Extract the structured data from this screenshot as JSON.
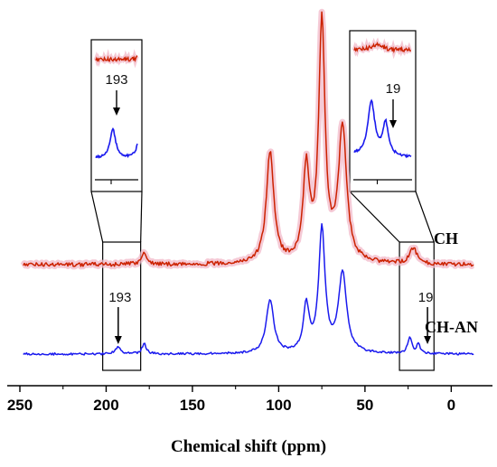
{
  "chart_data": {
    "type": "line",
    "title": "",
    "xlabel": "Chemical shift (ppm)",
    "ylabel": "",
    "xlim": [
      250,
      -15
    ],
    "x_reversed": true,
    "x_ticks": [
      250,
      200,
      150,
      100,
      50,
      0
    ],
    "x_tick_labels": [
      "250",
      "200",
      "150",
      "100",
      "50",
      "0"
    ],
    "grid": false,
    "series": [
      {
        "name": "CH",
        "color": "#cc2200",
        "glow_color": "#f2b8c8",
        "baseline": 0,
        "peaks": [
          {
            "ppm": 178,
            "height": 0.07,
            "width": 2.0
          },
          {
            "ppm": 105,
            "height": 0.7,
            "width": 2.6
          },
          {
            "ppm": 84,
            "height": 0.58,
            "width": 2.2
          },
          {
            "ppm": 75,
            "height": 1.5,
            "width": 2.2
          },
          {
            "ppm": 63,
            "height": 0.85,
            "width": 2.8
          },
          {
            "ppm": 22,
            "height": 0.1,
            "width": 2.5
          }
        ]
      },
      {
        "name": "CH-AN",
        "color": "#1a1aee",
        "baseline": 0,
        "peaks": [
          {
            "ppm": 193,
            "height": 0.05,
            "width": 1.8
          },
          {
            "ppm": 178,
            "height": 0.07,
            "width": 1.4
          },
          {
            "ppm": 105,
            "height": 0.35,
            "width": 2.6
          },
          {
            "ppm": 84,
            "height": 0.3,
            "width": 2.0
          },
          {
            "ppm": 75,
            "height": 0.8,
            "width": 2.2
          },
          {
            "ppm": 63,
            "height": 0.52,
            "width": 2.8
          },
          {
            "ppm": 24,
            "height": 0.1,
            "width": 1.5
          },
          {
            "ppm": 19,
            "height": 0.06,
            "width": 1.2
          }
        ]
      }
    ],
    "highlight_regions": [
      {
        "from": 202,
        "to": 180
      },
      {
        "from": 30,
        "to": 10
      }
    ],
    "annotations": [
      {
        "label": "193",
        "ppm": 193,
        "series": "CH-AN"
      },
      {
        "label": "19",
        "ppm": 19,
        "series": "CH-AN"
      }
    ],
    "insets": [
      {
        "region": [
          202,
          180
        ],
        "label": "193",
        "ppm_range": [
          202,
          180
        ]
      },
      {
        "region": [
          30,
          10
        ],
        "label": "19",
        "ppm_range": [
          30,
          10
        ]
      }
    ]
  }
}
